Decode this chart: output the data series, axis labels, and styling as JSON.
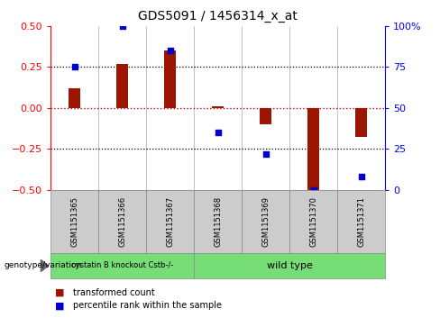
{
  "title": "GDS5091 / 1456314_x_at",
  "samples": [
    "GSM1151365",
    "GSM1151366",
    "GSM1151367",
    "GSM1151368",
    "GSM1151369",
    "GSM1151370",
    "GSM1151371"
  ],
  "bar_values": [
    0.12,
    0.27,
    0.35,
    0.01,
    -0.1,
    -0.5,
    -0.18
  ],
  "dot_percentiles": [
    75,
    100,
    85,
    35,
    22,
    0,
    8
  ],
  "ylim": [
    -0.5,
    0.5
  ],
  "right_ylim": [
    0,
    100
  ],
  "right_yticks": [
    0,
    25,
    50,
    75,
    100
  ],
  "right_yticklabels": [
    "0",
    "25",
    "50",
    "75",
    "100%"
  ],
  "left_yticks": [
    -0.5,
    -0.25,
    0,
    0.25,
    0.5
  ],
  "dotted_lines": [
    -0.25,
    0.25
  ],
  "bar_color": "#9B1500",
  "dot_color": "#0000CC",
  "hline_color": "#CC0000",
  "group1_indices": [
    0,
    1,
    2
  ],
  "group2_indices": [
    3,
    4,
    5,
    6
  ],
  "group1_label": "cystatin B knockout Cstb-/-",
  "group2_label": "wild type",
  "group_color": "#77DD77",
  "genotype_label": "genotype/variation",
  "legend1_label": "transformed count",
  "legend2_label": "percentile rank within the sample",
  "sample_bg_color": "#CCCCCC",
  "plot_bg_color": "#FFFFFF",
  "bar_width": 0.25
}
